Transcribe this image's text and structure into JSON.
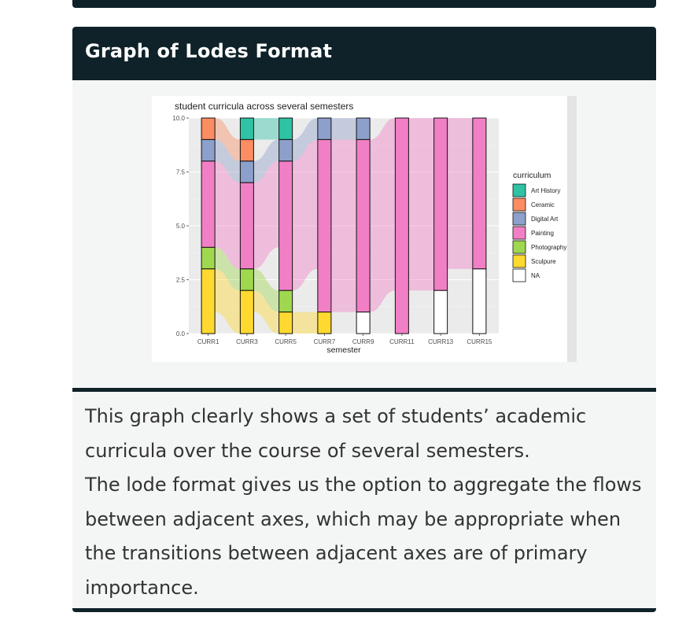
{
  "card": {
    "title": "Graph of Lodes Format",
    "description": [
      "This graph clearly shows a set of students’ academic curricula over the course of several semesters.",
      "The lode format gives us the option to aggregate the flows between adjacent axes, which may be appropriate when the transitions between adjacent axes are of primary importance."
    ]
  },
  "chart_data": {
    "type": "alluvial",
    "title": "student curricula across several semesters",
    "xlabel": "semester",
    "ylabel": "",
    "ylim": [
      0,
      10
    ],
    "yticks": [
      "0.0",
      "2.5",
      "5.0",
      "7.5",
      "10.0"
    ],
    "categories": [
      "CURR1",
      "CURR3",
      "CURR5",
      "CURR7",
      "CURR9",
      "CURR11",
      "CURR13",
      "CURR15"
    ],
    "legend_title": "curriculum",
    "legend_position": "right",
    "grid": true,
    "series": [
      {
        "name": "Art History",
        "color": "#2dc3a4",
        "values": [
          0,
          1,
          1,
          0,
          0,
          0,
          0,
          0
        ]
      },
      {
        "name": "Ceramic",
        "color": "#fb8d62",
        "values": [
          1,
          1,
          0,
          0,
          0,
          0,
          0,
          0
        ]
      },
      {
        "name": "Digital Art",
        "color": "#8da0cb",
        "values": [
          1,
          1,
          1,
          1,
          1,
          0,
          0,
          0
        ]
      },
      {
        "name": "Painting",
        "color": "#f17fc6",
        "values": [
          4,
          4,
          6,
          8,
          8,
          10,
          8,
          7
        ]
      },
      {
        "name": "Photography",
        "color": "#9fd84f",
        "values": [
          1,
          1,
          1,
          0,
          0,
          0,
          0,
          0
        ]
      },
      {
        "name": "Sculpure",
        "color": "#ffd92f",
        "values": [
          3,
          2,
          1,
          1,
          0,
          0,
          0,
          0
        ]
      },
      {
        "name": "NA",
        "color": "#ffffff",
        "values": [
          0,
          0,
          0,
          0,
          1,
          0,
          2,
          3
        ]
      }
    ]
  }
}
